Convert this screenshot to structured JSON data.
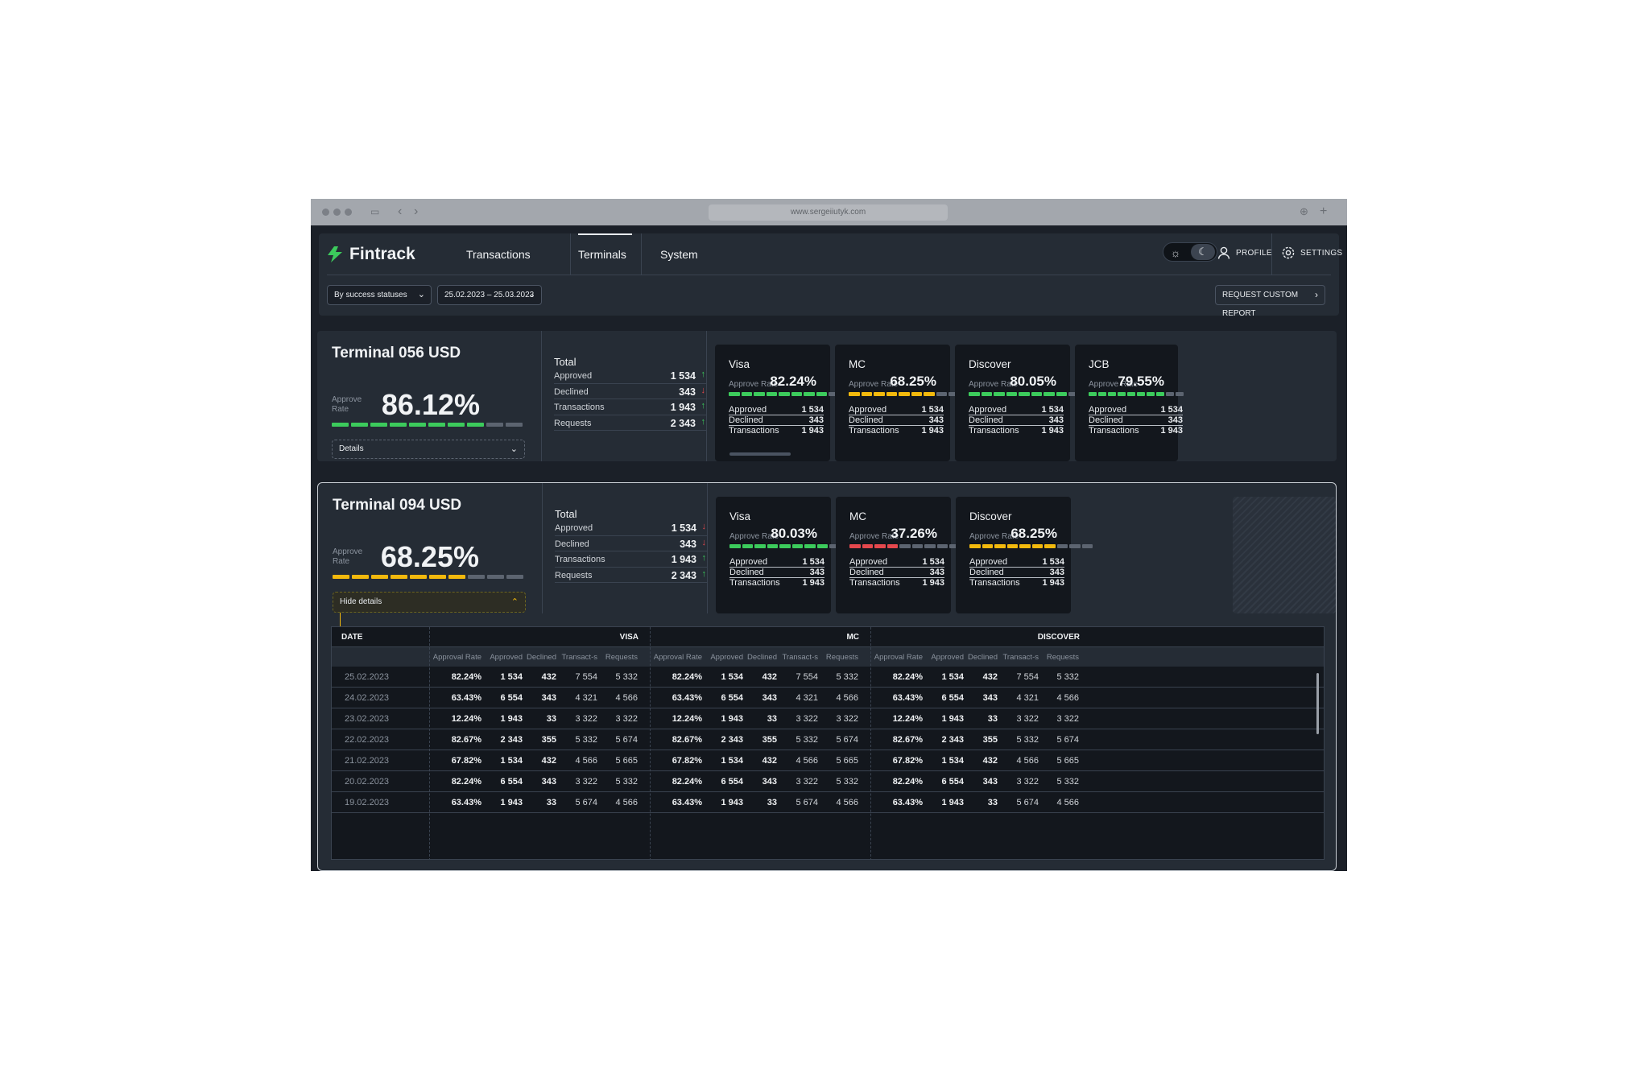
{
  "browser": {
    "url": "www.sergeiiutyk.com"
  },
  "app": {
    "logo": "Fintrack",
    "nav": [
      "Transactions",
      "Terminals",
      "System"
    ],
    "active_nav": "Terminals",
    "profile_label": "PROFILE",
    "settings_label": "SETTINGS"
  },
  "filters": {
    "status_filter": "By success statuses",
    "date_range": "25.02.2023 – 25.03.2023",
    "report_button": "REQUEST CUSTOM REPORT"
  },
  "colors": {
    "green": "#3ccb5c",
    "yellow": "#f2b90d",
    "red": "#e5484d",
    "grey": "#5c6470"
  },
  "terminals": [
    {
      "title": "Terminal 056 USD",
      "approve_label": "Approve Rate",
      "approve_rate": "86.12%",
      "bar_filled": 8,
      "bar_total": 10,
      "bar_color": "green",
      "details_label": "Details",
      "total": {
        "title": "Total",
        "rows": [
          {
            "label": "Approved",
            "value": "1 534",
            "trend": "up"
          },
          {
            "label": "Declined",
            "value": "343",
            "trend": "down"
          },
          {
            "label": "Transactions",
            "value": "1 943",
            "trend": "up"
          },
          {
            "label": "Requests",
            "value": "2 343",
            "trend": "up"
          }
        ]
      },
      "cards": [
        {
          "name": "Visa",
          "rate": "82.24%",
          "filled": 8,
          "color": "green",
          "approved": "1 534",
          "declined": "343",
          "transactions": "1 943"
        },
        {
          "name": "MC",
          "rate": "68.25%",
          "filled": 7,
          "color": "yellow",
          "approved": "1 534",
          "declined": "343",
          "transactions": "1 943"
        },
        {
          "name": "Discover",
          "rate": "80.05%",
          "filled": 8,
          "color": "green",
          "approved": "1 534",
          "declined": "343",
          "transactions": "1 943"
        },
        {
          "name": "JCB",
          "rate": "79.55%",
          "filled": 8,
          "color": "green",
          "approved": "1 534",
          "declined": "343",
          "transactions": "1 943"
        }
      ]
    },
    {
      "title": "Terminal 094 USD",
      "approve_label": "Approve Rate",
      "approve_rate": "68.25%",
      "bar_filled": 7,
      "bar_total": 10,
      "bar_color": "yellow",
      "details_label": "Hide details",
      "total": {
        "title": "Total",
        "rows": [
          {
            "label": "Approved",
            "value": "1 534",
            "trend": "down"
          },
          {
            "label": "Declined",
            "value": "343",
            "trend": "down"
          },
          {
            "label": "Transactions",
            "value": "1 943",
            "trend": "up"
          },
          {
            "label": "Requests",
            "value": "2 343",
            "trend": "up"
          }
        ]
      },
      "cards": [
        {
          "name": "Visa",
          "rate": "80.03%",
          "filled": 8,
          "color": "green",
          "approved": "1 534",
          "declined": "343",
          "transactions": "1 943"
        },
        {
          "name": "MC",
          "rate": "37.26%",
          "filled": 4,
          "color": "red",
          "approved": "1 534",
          "declined": "343",
          "transactions": "1 943"
        },
        {
          "name": "Discover",
          "rate": "68.25%",
          "filled": 7,
          "color": "yellow",
          "approved": "1 534",
          "declined": "343",
          "transactions": "1 943"
        }
      ]
    }
  ],
  "card_labels": {
    "approve_rate": "Approve Rate",
    "approved": "Approved",
    "declined": "Declined",
    "transactions": "Transactions"
  },
  "details_table": {
    "date_header": "DATE",
    "groups": [
      "VISA",
      "MC",
      "DISCOVER"
    ],
    "sub_headers": [
      "Approval Rate",
      "Approved",
      "Declined",
      "Transact-s",
      "Requests"
    ],
    "rows": [
      {
        "date": "25.02.2023",
        "values": [
          "82.24%",
          "1 534",
          "432",
          "7 554",
          "5 332"
        ]
      },
      {
        "date": "24.02.2023",
        "values": [
          "63.43%",
          "6 554",
          "343",
          "4 321",
          "4 566"
        ]
      },
      {
        "date": "23.02.2023",
        "values": [
          "12.24%",
          "1 943",
          "33",
          "3 322",
          "3 322"
        ]
      },
      {
        "date": "22.02.2023",
        "values": [
          "82.67%",
          "2 343",
          "355",
          "5 332",
          "5 674"
        ]
      },
      {
        "date": "21.02.2023",
        "values": [
          "67.82%",
          "1 534",
          "432",
          "4 566",
          "5 665"
        ]
      },
      {
        "date": "20.02.2023",
        "values": [
          "82.24%",
          "6 554",
          "343",
          "3 322",
          "5 332"
        ]
      },
      {
        "date": "19.02.2023",
        "values": [
          "63.43%",
          "1 943",
          "33",
          "5 674",
          "4 566"
        ]
      }
    ]
  }
}
